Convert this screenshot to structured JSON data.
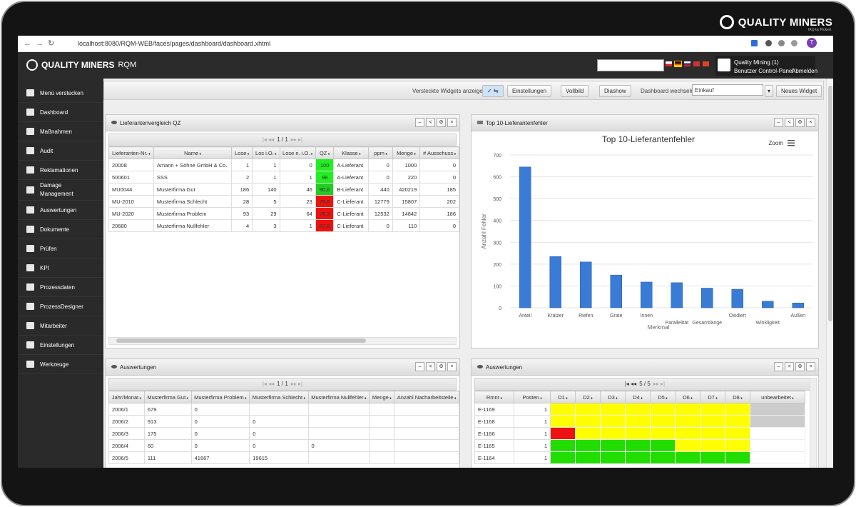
{
  "frame": {
    "brand": "QUALITY MINERS",
    "brand_sub": "IAQ by Pickert"
  },
  "browser": {
    "url": "localhost:8080/RQM-WEB/faces/pages/dashboard/dashboard.xhtml",
    "avatar": "T"
  },
  "app": {
    "brand": "QUALITY MINERS",
    "product": "RQM",
    "user": "Quality Mining (1)",
    "links": [
      "Benutzer Control-Panel",
      "Abmelden"
    ]
  },
  "sidebar": [
    "Menü verstecken",
    "Dashboard",
    "Maßnahmen",
    "Audit",
    "Reklamationen",
    "Damage Management",
    "Auswertungen",
    "Dokumente",
    "Prüfen",
    "KPI",
    "Prozessdaten",
    "ProzessDesigner",
    "Mitarbeiter",
    "Einstellungen",
    "Werkzeuge"
  ],
  "toolbar": {
    "show_hidden": "Versteckte Widgets anzeigen",
    "buttons": [
      "Einstellungen",
      "Vollbild",
      "Diashow"
    ],
    "switch_label": "Dashboard wechseln:",
    "dashboard": "Einkauf",
    "new_widget": "Neues Widget"
  },
  "supplier_widget": {
    "title": "Lieferantenvergleich QZ",
    "pager": "1 / 1",
    "columns": [
      "Lieferanten-Nr.",
      "Name",
      "Lose",
      "Los i.O.",
      "Lose n. i.O.",
      "QZ",
      "Klasse",
      "ppm",
      "Menge",
      "# Ausschuss"
    ],
    "rows": [
      [
        "20008",
        "Amann + Söhne GmbH & Co.",
        1,
        1,
        0,
        100,
        "A-Lieferant",
        0,
        1000,
        0
      ],
      [
        "500601",
        "SSS",
        2,
        1,
        1,
        98,
        "A-Lieferant",
        0,
        220,
        0
      ],
      [
        "MU0044",
        "Musterfirma Gut",
        186,
        140,
        46,
        "90,6",
        "B-Lieferant",
        440,
        420219,
        185
      ],
      [
        "MU-2010",
        "Musterfirma Schlecht",
        28,
        5,
        23,
        "79,8",
        "C-Lieferant",
        12779,
        15807,
        202
      ],
      [
        "MU-2020",
        "Musterfirma Problem",
        93,
        29,
        64,
        "76,3",
        "C-Lieferant",
        12532,
        14842,
        186
      ],
      [
        "20680",
        "Musterfirma Nullfehler",
        4,
        3,
        1,
        "67,8",
        "C-Lieferant",
        0,
        110,
        0
      ]
    ],
    "qz_colors": [
      "#22ee22",
      "#22ee22",
      "#22cc22",
      "#ee1111",
      "#ee1111",
      "#ee1111"
    ]
  },
  "chart_data": {
    "type": "bar",
    "title": "Top 10-Lieferantenfehler",
    "zoom": "Zoom",
    "x_label": "Merkmal",
    "y_label": "Anzahl Fehler",
    "categories": [
      "Anteil",
      "Kratzer",
      "Riefen",
      "Grate",
      "Innen",
      "Parallelität",
      "Gesamtlänge",
      "Oxidiert",
      "Winkligkeit",
      "Außen"
    ],
    "values": [
      645,
      235,
      210,
      150,
      118,
      115,
      90,
      85,
      30,
      22
    ],
    "color": "#3a7bd5",
    "ylim": [
      0,
      700
    ],
    "yticks": [
      0,
      100,
      200,
      300,
      400,
      500,
      600,
      700
    ],
    "grid": true
  },
  "monthly_widget": {
    "title": "Auswertungen",
    "pager": "1 / 1",
    "columns": [
      "Jahr/Monat",
      "Musterfirma Gut",
      "Musterfirma Problem",
      "Musterfirma Schlecht",
      "Musterfirma Nullfehler",
      "Menge",
      "Anzahl Nacharbeitsteile"
    ],
    "rows": [
      [
        "2006/1",
        679,
        0,
        null,
        null,
        null,
        null
      ],
      [
        "2006/2",
        913,
        0,
        0,
        null,
        null,
        null
      ],
      [
        "2006/3",
        175,
        0,
        0,
        null,
        null,
        null
      ],
      [
        "2006/4",
        60,
        0,
        0,
        0,
        null,
        null
      ],
      [
        "2006/5",
        111,
        41667,
        19615,
        null,
        null,
        null
      ]
    ]
  },
  "status_widget": {
    "title": "Auswertungen",
    "pager": "5 / 5",
    "columns": [
      "Rmnr",
      "Posten",
      "D1",
      "D2",
      "D3",
      "D4",
      "D5",
      "D6",
      "D7",
      "D8",
      "unbearbeitet"
    ],
    "rows": [
      [
        "E-1169",
        1
      ],
      [
        "E-1168",
        1
      ],
      [
        "E-1166",
        1
      ],
      [
        "E-1165",
        1
      ],
      [
        "E-1164",
        1
      ]
    ],
    "cell_colors": [
      [
        "#ffff00",
        "#ffff00",
        "#ffff00",
        "#ffff00",
        "#ffff00",
        "#ffff00",
        "#ffff00",
        "#ffff00",
        "#cccccc"
      ],
      [
        "#ffff00",
        "#ffff00",
        "#ffff00",
        "#ffff00",
        "#ffff00",
        "#ffff00",
        "#ffff00",
        "#ffff00",
        "#cccccc"
      ],
      [
        "#ee1111",
        "#ffff00",
        "#ffff00",
        "#ffff00",
        "#ffff00",
        "#ffff00",
        "#ffff00",
        "#ffff00",
        "#ffffff"
      ],
      [
        "#22dd00",
        "#22dd00",
        "#22dd00",
        "#22dd00",
        "#22dd00",
        "#ffff00",
        "#ffff00",
        "#ffff00",
        "#ffffff"
      ],
      [
        "#22dd00",
        "#22dd00",
        "#22dd00",
        "#22dd00",
        "#22dd00",
        "#22dd00",
        "#22dd00",
        "#22dd00",
        "#ffffff"
      ]
    ]
  }
}
